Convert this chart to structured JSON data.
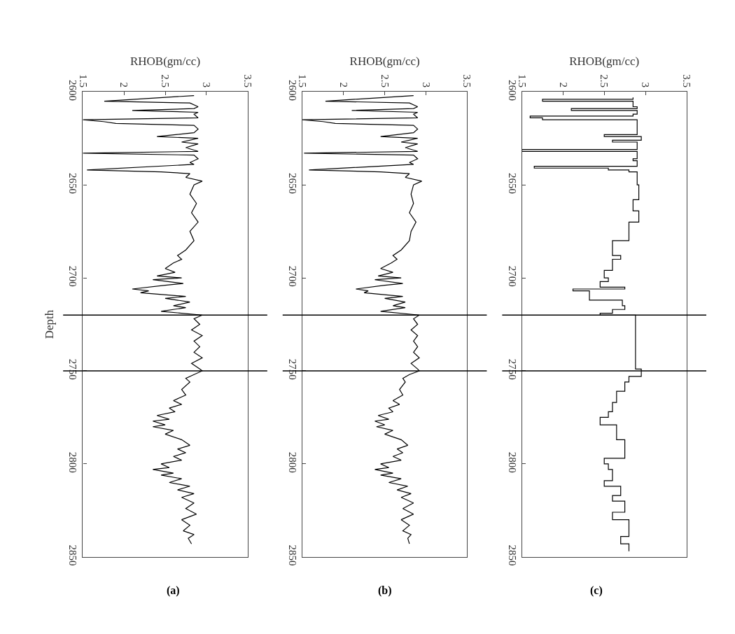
{
  "chart_data": [
    {
      "type": "line",
      "orientation": "horizontal",
      "xlabel": "RHOB(gm/cc)",
      "ylabel": "Depth",
      "annotations": [
        "(a)"
      ],
      "xlim": [
        1.5,
        3.5
      ],
      "xticks": [
        1.5,
        2,
        2.5,
        3,
        3.5
      ],
      "ylim": [
        2850,
        2600
      ],
      "yticks": [
        2600,
        2650,
        2700,
        2750,
        2800,
        2850
      ],
      "x": [
        2602,
        2605,
        2606,
        2608,
        2609,
        2610,
        2611,
        2612,
        2614,
        2615,
        2616,
        2617,
        2618,
        2620,
        2622,
        2624,
        2625,
        2627,
        2628,
        2630,
        2632,
        2633,
        2634,
        2636,
        2638,
        2639,
        2642,
        2643,
        2644,
        2646,
        2648,
        2650,
        2655,
        2660,
        2665,
        2670,
        2675,
        2680,
        2685,
        2688,
        2690,
        2692,
        2695,
        2697,
        2699,
        2700,
        2701,
        2703,
        2704,
        2706,
        2707,
        2708,
        2710,
        2711,
        2713,
        2715,
        2716,
        2718,
        2720,
        2722,
        2725,
        2728,
        2731,
        2734,
        2737,
        2740,
        2743,
        2746,
        2749,
        2750,
        2752,
        2754,
        2756,
        2760,
        2763,
        2766,
        2768,
        2770,
        2772,
        2774,
        2776,
        2777,
        2779,
        2780,
        2782,
        2784,
        2787,
        2790,
        2792,
        2794,
        2796,
        2798,
        2800,
        2802,
        2803,
        2805,
        2806,
        2808,
        2810,
        2812,
        2814,
        2816,
        2818,
        2821,
        2824,
        2827,
        2830,
        2833,
        2836,
        2838,
        2840,
        2843
      ],
      "series": [
        {
          "color": "#000000",
          "values": [
            2.85,
            1.76,
            2.8,
            2.9,
            2.85,
            2.1,
            2.9,
            2.85,
            2.9,
            1.5,
            1.75,
            1.9,
            2.85,
            2.9,
            2.85,
            2.4,
            2.9,
            2.7,
            2.9,
            2.75,
            2.9,
            1.5,
            2.85,
            2.9,
            2.8,
            2.85,
            1.55,
            2.45,
            2.8,
            2.75,
            2.95,
            2.85,
            2.8,
            2.88,
            2.82,
            2.9,
            2.8,
            2.85,
            2.75,
            2.65,
            2.7,
            2.6,
            2.5,
            2.62,
            2.4,
            2.7,
            2.35,
            2.72,
            2.5,
            2.1,
            2.3,
            2.2,
            2.75,
            2.5,
            2.8,
            2.6,
            2.75,
            2.45,
            2.95,
            2.85,
            2.92,
            2.82,
            2.95,
            2.85,
            2.92,
            2.85,
            2.95,
            2.82,
            2.92,
            2.95,
            2.85,
            2.75,
            2.8,
            2.7,
            2.75,
            2.6,
            2.7,
            2.55,
            2.62,
            2.4,
            2.55,
            2.35,
            2.5,
            2.35,
            2.6,
            2.5,
            2.7,
            2.8,
            2.65,
            2.75,
            2.6,
            2.7,
            2.45,
            2.55,
            2.35,
            2.6,
            2.45,
            2.7,
            2.55,
            2.8,
            2.65,
            2.85,
            2.7,
            2.85,
            2.75,
            2.88,
            2.7,
            2.8,
            2.72,
            2.85,
            2.78,
            2.82
          ]
        }
      ],
      "ref_lines": [
        {
          "axis": "y",
          "value": 2720,
          "color": "#000000"
        },
        {
          "axis": "y",
          "value": 2750,
          "color": "#000000"
        }
      ]
    },
    {
      "type": "line",
      "orientation": "horizontal",
      "xlabel": "RHOB(gm/cc)",
      "annotations": [
        "(b)"
      ],
      "xlim": [
        1.5,
        3.5
      ],
      "xticks": [
        1.5,
        2,
        2.5,
        3,
        3.5
      ],
      "ylim": [
        2850,
        2600
      ],
      "yticks": [
        2600,
        2650,
        2700,
        2750,
        2800,
        2850
      ],
      "x": [
        2602,
        2605,
        2606,
        2608,
        2609,
        2610,
        2611,
        2612,
        2614,
        2615,
        2616,
        2617,
        2618,
        2620,
        2622,
        2624,
        2625,
        2627,
        2628,
        2630,
        2632,
        2633,
        2634,
        2636,
        2638,
        2639,
        2642,
        2643,
        2644,
        2646,
        2648,
        2650,
        2655,
        2660,
        2665,
        2670,
        2675,
        2680,
        2685,
        2688,
        2690,
        2692,
        2695,
        2697,
        2699,
        2700,
        2701,
        2703,
        2704,
        2706,
        2707,
        2708,
        2710,
        2711,
        2713,
        2715,
        2716,
        2718,
        2720,
        2722,
        2725,
        2728,
        2731,
        2734,
        2737,
        2740,
        2743,
        2746,
        2749,
        2750,
        2752,
        2754,
        2756,
        2760,
        2763,
        2766,
        2768,
        2770,
        2772,
        2774,
        2776,
        2777,
        2779,
        2780,
        2782,
        2784,
        2787,
        2790,
        2792,
        2794,
        2796,
        2798,
        2800,
        2802,
        2803,
        2805,
        2806,
        2808,
        2810,
        2812,
        2814,
        2816,
        2818,
        2821,
        2824,
        2827,
        2830,
        2833,
        2836,
        2838,
        2840,
        2843
      ],
      "series": [
        {
          "color": "#000000",
          "values": [
            2.85,
            1.78,
            2.8,
            2.9,
            2.85,
            2.1,
            2.9,
            2.85,
            2.9,
            1.5,
            1.75,
            1.9,
            2.85,
            2.9,
            2.85,
            2.45,
            2.9,
            2.7,
            2.9,
            2.75,
            2.9,
            1.52,
            2.85,
            2.9,
            2.8,
            2.85,
            1.58,
            2.45,
            2.8,
            2.75,
            2.95,
            2.85,
            2.82,
            2.85,
            2.8,
            2.88,
            2.82,
            2.8,
            2.7,
            2.6,
            2.65,
            2.58,
            2.45,
            2.6,
            2.42,
            2.7,
            2.38,
            2.72,
            2.5,
            2.15,
            2.3,
            2.25,
            2.72,
            2.5,
            2.75,
            2.6,
            2.75,
            2.45,
            2.92,
            2.85,
            2.9,
            2.82,
            2.9,
            2.85,
            2.9,
            2.85,
            2.92,
            2.82,
            2.9,
            2.92,
            2.8,
            2.72,
            2.75,
            2.68,
            2.72,
            2.6,
            2.68,
            2.55,
            2.6,
            2.42,
            2.55,
            2.38,
            2.5,
            2.4,
            2.6,
            2.5,
            2.7,
            2.78,
            2.65,
            2.72,
            2.6,
            2.7,
            2.45,
            2.55,
            2.38,
            2.6,
            2.45,
            2.7,
            2.55,
            2.78,
            2.65,
            2.82,
            2.7,
            2.85,
            2.72,
            2.85,
            2.7,
            2.8,
            2.72,
            2.82,
            2.78,
            2.8
          ]
        }
      ],
      "ref_lines": [
        {
          "axis": "y",
          "value": 2720,
          "color": "#000000"
        },
        {
          "axis": "y",
          "value": 2750,
          "color": "#000000"
        }
      ]
    },
    {
      "type": "step",
      "orientation": "horizontal",
      "xlabel": "RHOB(gm/cc)",
      "annotations": [
        "(c)"
      ],
      "xlim": [
        1.5,
        3.5
      ],
      "xticks": [
        1.5,
        2,
        2.5,
        3,
        3.5
      ],
      "ylim": [
        2850,
        2600
      ],
      "yticks": [
        2600,
        2650,
        2700,
        2750,
        2800,
        2850
      ],
      "x": [
        2603,
        2604,
        2605,
        2608,
        2609,
        2610,
        2612,
        2613,
        2614,
        2615,
        2622,
        2623,
        2624,
        2626,
        2627,
        2630,
        2631,
        2632,
        2636,
        2637,
        2640,
        2641,
        2642,
        2643,
        2650,
        2658,
        2664,
        2670,
        2680,
        2688,
        2690,
        2696,
        2700,
        2702,
        2705,
        2706,
        2707,
        2712,
        2715,
        2717,
        2719,
        2720,
        2749,
        2753,
        2756,
        2761,
        2767,
        2772,
        2775,
        2779,
        2787,
        2797,
        2800,
        2803,
        2809,
        2812,
        2817,
        2820,
        2826,
        2830,
        2839,
        2843,
        2847
      ],
      "series": [
        {
          "color": "#000000",
          "values": [
            2.85,
            1.75,
            2.85,
            2.9,
            2.1,
            2.9,
            2.85,
            1.6,
            1.75,
            2.9,
            2.9,
            2.5,
            2.95,
            2.6,
            2.9,
            2.9,
            1.5,
            2.9,
            2.85,
            2.9,
            1.65,
            2.55,
            2.8,
            2.9,
            2.92,
            2.85,
            2.92,
            2.8,
            2.6,
            2.7,
            2.6,
            2.5,
            2.55,
            2.45,
            2.75,
            2.12,
            2.32,
            2.72,
            2.75,
            2.6,
            2.45,
            2.88,
            2.95,
            2.8,
            2.75,
            2.65,
            2.6,
            2.55,
            2.45,
            2.65,
            2.75,
            2.5,
            2.55,
            2.6,
            2.5,
            2.7,
            2.6,
            2.75,
            2.6,
            2.8,
            2.7,
            2.8,
            2.8
          ]
        }
      ],
      "ref_lines": [
        {
          "axis": "y",
          "value": 2720,
          "color": "#000000"
        },
        {
          "axis": "y",
          "value": 2750,
          "color": "#000000"
        }
      ]
    }
  ]
}
